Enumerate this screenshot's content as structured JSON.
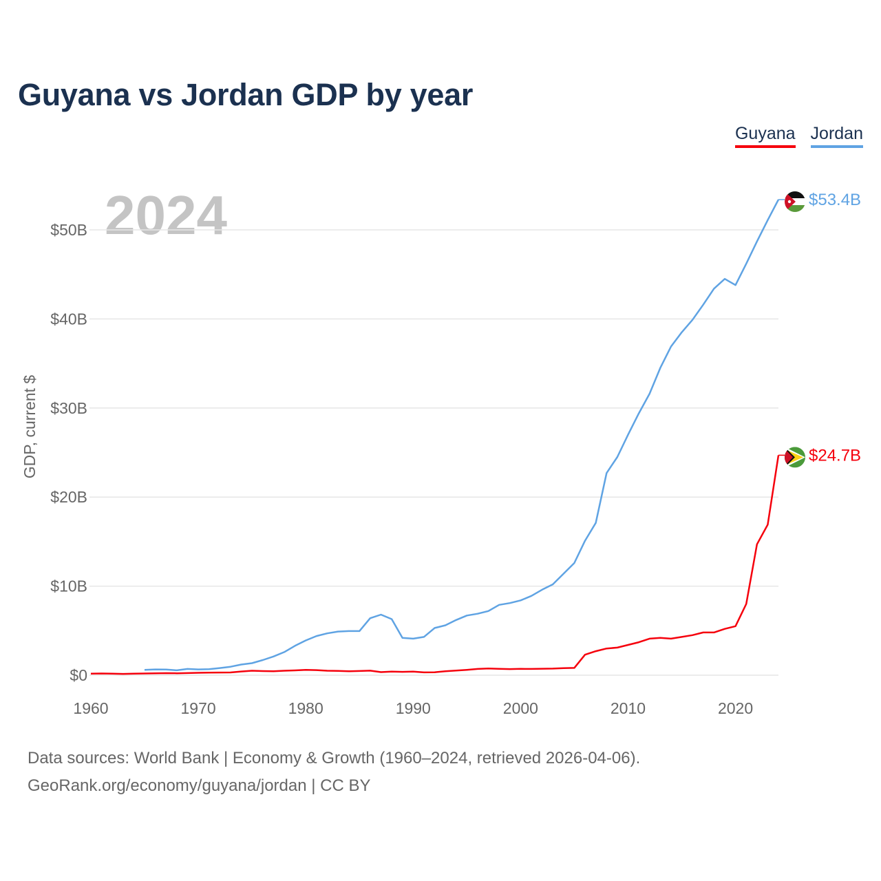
{
  "title": "Guyana vs Jordan GDP by year",
  "legend": [
    {
      "name": "Guyana",
      "color": "#f5000c"
    },
    {
      "name": "Jordan",
      "color": "#5fa3e3"
    }
  ],
  "year_label": "2024",
  "footer": {
    "line1": "Data sources: World Bank | Economy & Growth (1960–2024, retrieved 2026-04-06).",
    "line2": "GeoRank.org/economy/guyana/jordan | CC BY"
  },
  "flags": [
    {
      "country": "Jordan",
      "icon": "jordan-flag-icon"
    },
    {
      "country": "Guyana",
      "icon": "guyana-flag-icon"
    }
  ],
  "chart_data": {
    "type": "line",
    "title": "Guyana vs Jordan GDP by year",
    "xlabel": "",
    "ylabel": "GDP, current $",
    "xlim": [
      1960,
      2024
    ],
    "ylim": [
      0,
      53.4
    ],
    "grid": true,
    "legend_position": "top-right",
    "xticks": [
      1960,
      1970,
      1980,
      1990,
      2000,
      2010,
      2020
    ],
    "yticks": [
      0,
      10,
      20,
      30,
      40,
      50
    ],
    "ytick_labels": [
      "$0",
      "$10B",
      "$20B",
      "$30B",
      "$40B",
      "$50B"
    ],
    "series": [
      {
        "name": "Jordan",
        "color": "#5fa3e3",
        "end_label": "$53.4B",
        "x": [
          1965,
          1966,
          1967,
          1968,
          1969,
          1970,
          1971,
          1972,
          1973,
          1974,
          1975,
          1976,
          1977,
          1978,
          1979,
          1980,
          1981,
          1982,
          1983,
          1984,
          1985,
          1986,
          1987,
          1988,
          1989,
          1990,
          1991,
          1992,
          1993,
          1994,
          1995,
          1996,
          1997,
          1998,
          1999,
          2000,
          2001,
          2002,
          2003,
          2004,
          2005,
          2006,
          2007,
          2008,
          2009,
          2010,
          2011,
          2012,
          2013,
          2014,
          2015,
          2016,
          2017,
          2018,
          2019,
          2020,
          2021,
          2022,
          2023,
          2024
        ],
        "values": [
          0.6,
          0.65,
          0.63,
          0.55,
          0.7,
          0.65,
          0.68,
          0.8,
          0.95,
          1.2,
          1.35,
          1.7,
          2.1,
          2.6,
          3.3,
          3.9,
          4.4,
          4.7,
          4.9,
          4.95,
          4.95,
          6.4,
          6.8,
          6.3,
          4.2,
          4.1,
          4.3,
          5.3,
          5.6,
          6.2,
          6.7,
          6.9,
          7.2,
          7.9,
          8.1,
          8.4,
          8.9,
          9.6,
          10.2,
          11.4,
          12.6,
          15.1,
          17.1,
          22.7,
          24.5,
          27.0,
          29.4,
          31.6,
          34.5,
          36.9,
          38.5,
          39.9,
          41.6,
          43.4,
          44.5,
          43.8,
          46.2,
          48.7,
          51.1,
          53.4
        ]
      },
      {
        "name": "Guyana",
        "color": "#f5000c",
        "end_label": "$24.7B",
        "x": [
          1960,
          1961,
          1962,
          1963,
          1964,
          1965,
          1966,
          1967,
          1968,
          1969,
          1970,
          1971,
          1972,
          1973,
          1974,
          1975,
          1976,
          1977,
          1978,
          1979,
          1980,
          1981,
          1982,
          1983,
          1984,
          1985,
          1986,
          1987,
          1988,
          1989,
          1990,
          1991,
          1992,
          1993,
          1994,
          1995,
          1996,
          1997,
          1998,
          1999,
          2000,
          2001,
          2002,
          2003,
          2004,
          2005,
          2006,
          2007,
          2008,
          2009,
          2010,
          2011,
          2012,
          2013,
          2014,
          2015,
          2016,
          2017,
          2018,
          2019,
          2020,
          2021,
          2022,
          2023,
          2024
        ],
        "values": [
          0.17,
          0.19,
          0.18,
          0.15,
          0.17,
          0.19,
          0.21,
          0.23,
          0.22,
          0.24,
          0.27,
          0.29,
          0.3,
          0.31,
          0.42,
          0.5,
          0.46,
          0.45,
          0.5,
          0.54,
          0.6,
          0.57,
          0.5,
          0.48,
          0.44,
          0.47,
          0.51,
          0.35,
          0.4,
          0.38,
          0.4,
          0.32,
          0.33,
          0.44,
          0.52,
          0.6,
          0.7,
          0.75,
          0.72,
          0.69,
          0.71,
          0.7,
          0.73,
          0.74,
          0.79,
          0.82,
          2.3,
          2.7,
          3.0,
          3.1,
          3.4,
          3.7,
          4.1,
          4.2,
          4.1,
          4.3,
          4.5,
          4.8,
          4.8,
          5.2,
          5.5,
          8.0,
          14.7,
          16.9,
          24.7
        ]
      }
    ]
  }
}
